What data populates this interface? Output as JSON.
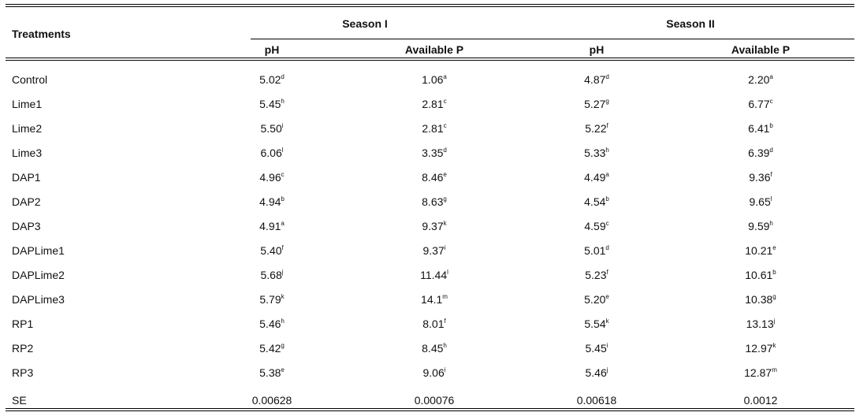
{
  "table": {
    "header": {
      "treatments": "Treatments",
      "season1": "Season I",
      "season2": "Season II",
      "ph": "pH",
      "available_p": "Available P"
    },
    "rows": [
      {
        "treatment": "Control",
        "s1_ph": "5.02",
        "s1_ph_sup": "d",
        "s1_p": "1.06",
        "s1_p_sup": "a",
        "s2_ph": "4.87",
        "s2_ph_sup": "d",
        "s2_p": "2.20",
        "s2_p_sup": "a"
      },
      {
        "treatment": "Lime1",
        "s1_ph": "5.45",
        "s1_ph_sup": "h",
        "s1_p": "2.81",
        "s1_p_sup": "c",
        "s2_ph": "5.27",
        "s2_ph_sup": "g",
        "s2_p": "6.77",
        "s2_p_sup": "c"
      },
      {
        "treatment": "Lime2",
        "s1_ph": "5.50",
        "s1_ph_sup": "i",
        "s1_p": "2.81",
        "s1_p_sup": "c",
        "s2_ph": "5.22",
        "s2_ph_sup": "f",
        "s2_p": "6.41",
        "s2_p_sup": "b"
      },
      {
        "treatment": "Lime3",
        "s1_ph": "6.06",
        "s1_ph_sup": "l",
        "s1_p": "3.35",
        "s1_p_sup": "d",
        "s2_ph": "5.33",
        "s2_ph_sup": "h",
        "s2_p": "6.39",
        "s2_p_sup": "d"
      },
      {
        "treatment": "DAP1",
        "s1_ph": "4.96",
        "s1_ph_sup": "c",
        "s1_p": "8.46",
        "s1_p_sup": "e",
        "s2_ph": "4.49",
        "s2_ph_sup": "a",
        "s2_p": "9.36",
        "s2_p_sup": "f"
      },
      {
        "treatment": "DAP2",
        "s1_ph": "4.94",
        "s1_ph_sup": "b",
        "s1_p": "8.63",
        "s1_p_sup": "g",
        "s2_ph": "4.54",
        "s2_ph_sup": "b",
        "s2_p": "9.65",
        "s2_p_sup": "l"
      },
      {
        "treatment": "DAP3",
        "s1_ph": "4.91",
        "s1_ph_sup": "a",
        "s1_p": "9.37",
        "s1_p_sup": "k",
        "s2_ph": "4.59",
        "s2_ph_sup": "c",
        "s2_p": "9.59",
        "s2_p_sup": "h"
      },
      {
        "treatment": "DAPLime1",
        "s1_ph": "5.40",
        "s1_ph_sup": "f",
        "s1_p": "9.37",
        "s1_p_sup": "i",
        "s2_ph": "5.01",
        "s2_ph_sup": "d",
        "s2_p": "10.21",
        "s2_p_sup": "e"
      },
      {
        "treatment": "DAPLime2",
        "s1_ph": "5.68",
        "s1_ph_sup": "j",
        "s1_p": "11.44",
        "s1_p_sup": "l",
        "s2_ph": "5.23",
        "s2_ph_sup": "f",
        "s2_p": "10.61",
        "s2_p_sup": "b"
      },
      {
        "treatment": "DAPLime3",
        "s1_ph": "5.79",
        "s1_ph_sup": "k",
        "s1_p": "14.1",
        "s1_p_sup": "m",
        "s2_ph": "5.20",
        "s2_ph_sup": "e",
        "s2_p": "10.38",
        "s2_p_sup": "g"
      },
      {
        "treatment": "RP1",
        "s1_ph": "5.46",
        "s1_ph_sup": "h",
        "s1_p": "8.01",
        "s1_p_sup": "f",
        "s2_ph": "5.54",
        "s2_ph_sup": "k",
        "s2_p": "13.13",
        "s2_p_sup": "j"
      },
      {
        "treatment": "RP2",
        "s1_ph": "5.42",
        "s1_ph_sup": "g",
        "s1_p": "8.45",
        "s1_p_sup": "h",
        "s2_ph": "5.45",
        "s2_ph_sup": "i",
        "s2_p": "12.97",
        "s2_p_sup": "k"
      },
      {
        "treatment": "RP3",
        "s1_ph": "5.38",
        "s1_ph_sup": "e",
        "s1_p": "9.06",
        "s1_p_sup": "i",
        "s2_ph": "5.46",
        "s2_ph_sup": "j",
        "s2_p": "12.87",
        "s2_p_sup": "m"
      }
    ],
    "se_row": {
      "treatment": "SE",
      "s1_ph": "0.00628",
      "s1_p": "0.00076",
      "s2_ph": "0.00618",
      "s2_p": "0.0012"
    }
  }
}
